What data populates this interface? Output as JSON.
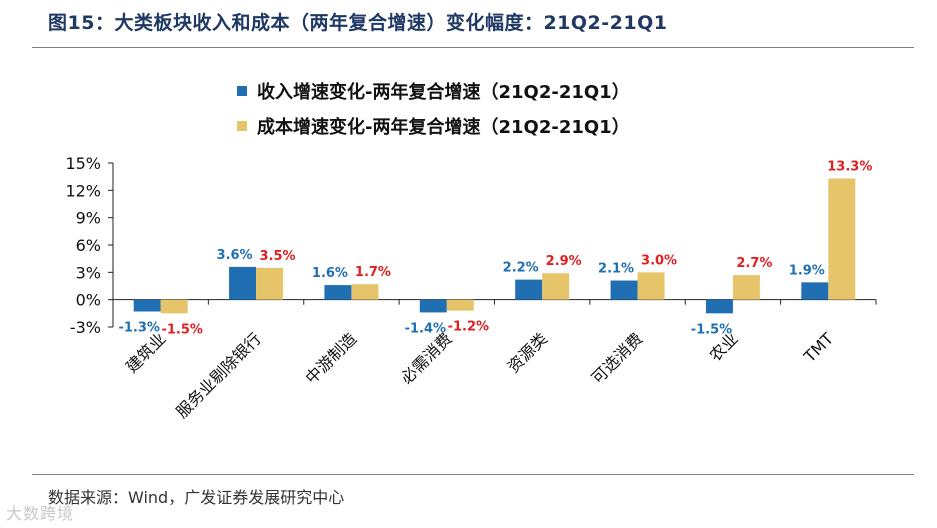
{
  "title": "图15：大类板块收入和成本（两年复合增速）变化幅度：21Q2-21Q1",
  "source": "数据来源：Wind，广发证券发展研究中心",
  "watermark": "大数跨境",
  "colors": {
    "revenue": "#1f6fb2",
    "cost": "#e6c46a",
    "revenue_label": "#1f6fb2",
    "cost_label": "#e02020",
    "title": "#1f3864"
  },
  "chart_data": {
    "type": "bar",
    "categories": [
      "建筑业",
      "服务业剔除银行",
      "中游制造",
      "必需消费",
      "资源类",
      "可选消费",
      "农业",
      "TMT"
    ],
    "series": [
      {
        "name": "收入增速变化-两年复合增速（21Q2-21Q1）",
        "values": [
          -1.3,
          3.6,
          1.6,
          -1.4,
          2.2,
          2.1,
          -1.5,
          1.9
        ]
      },
      {
        "name": "成本增速变化-两年复合增速（21Q2-21Q1）",
        "values": [
          -1.5,
          3.5,
          1.7,
          -1.2,
          2.9,
          3.0,
          2.7,
          13.3
        ]
      }
    ],
    "data_labels": {
      "revenue": [
        "-1.3%",
        "3.6%",
        "1.6%",
        "-1.4%",
        "2.2%",
        "2.1%",
        "-1.5%",
        "1.9%"
      ],
      "cost": [
        "-1.5%",
        "3.5%",
        "1.7%",
        "-1.2%",
        "2.9%",
        "3.0%",
        "2.7%",
        "13.3%"
      ]
    },
    "ylim": [
      -3,
      15
    ],
    "yticks": [
      "-3%",
      "0%",
      "3%",
      "6%",
      "9%",
      "12%",
      "15%"
    ],
    "ytick_values": [
      -3,
      0,
      3,
      6,
      9,
      12,
      15
    ],
    "grid": false,
    "legend_position": "top"
  }
}
